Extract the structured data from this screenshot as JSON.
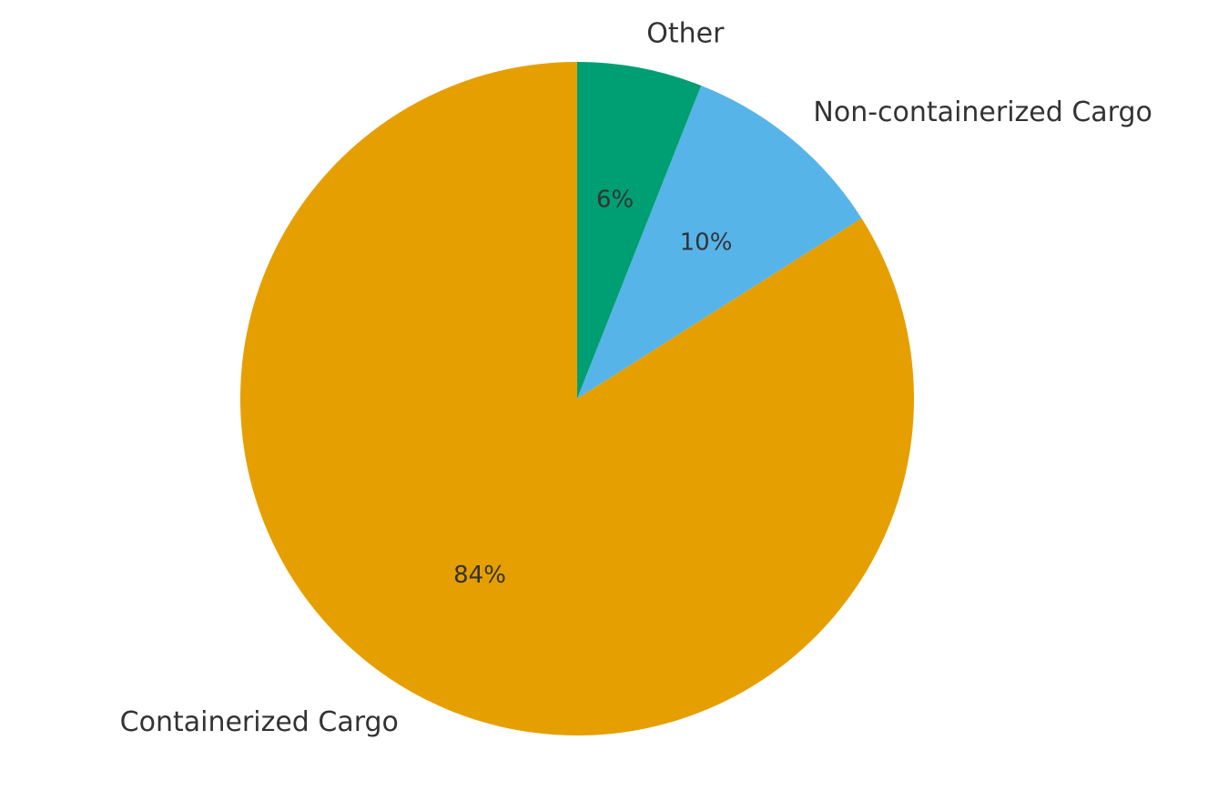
{
  "chart_data": {
    "type": "pie",
    "categories": [
      "Containerized Cargo",
      "Non-containerized Cargo",
      "Other"
    ],
    "values": [
      84,
      10,
      6
    ],
    "value_labels": [
      "84%",
      "10%",
      "6%"
    ],
    "colors": [
      "#E69F00",
      "#56B4E9",
      "#009E73"
    ],
    "start_angle": 90
  }
}
